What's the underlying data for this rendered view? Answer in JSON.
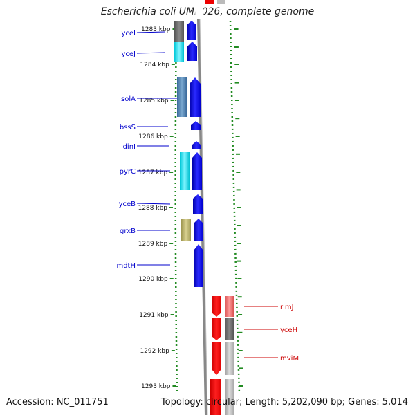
{
  "title": "Escherichia coli UMN026, complete genome",
  "accession": "Accession: NC_011751",
  "summary": "Topology: circular; Length: 5,202,090 bp; Genes: 5,014",
  "ruler_ticks": [
    "1283 kbp",
    "1284 kbp",
    "1285 kbp",
    "1286 kbp",
    "1287 kbp",
    "1288 kbp",
    "1289 kbp",
    "1290 kbp",
    "1291 kbp",
    "1292 kbp",
    "1293 kbp"
  ],
  "genes_left": [
    {
      "name": "yceI",
      "color": "#0000cc"
    },
    {
      "name": "yceJ",
      "color": "#0000cc"
    },
    {
      "name": "solA",
      "color": "#0000cc"
    },
    {
      "name": "bssS",
      "color": "#0000cc"
    },
    {
      "name": "dinI",
      "color": "#0000cc"
    },
    {
      "name": "pyrC",
      "color": "#0000cc"
    },
    {
      "name": "yceB",
      "color": "#0000cc"
    },
    {
      "name": "grxB",
      "color": "#0000cc"
    },
    {
      "name": "mdtH",
      "color": "#0000cc"
    }
  ],
  "genes_right": [
    {
      "name": "rimJ",
      "color": "#cc0000"
    },
    {
      "name": "yceH",
      "color": "#cc0000"
    },
    {
      "name": "mviM",
      "color": "#cc0000"
    }
  ],
  "colors": {
    "forward_gene": "#0000ee",
    "reverse_gene": "#ee0000",
    "backbone": "#888888",
    "tick": "#228b22"
  }
}
